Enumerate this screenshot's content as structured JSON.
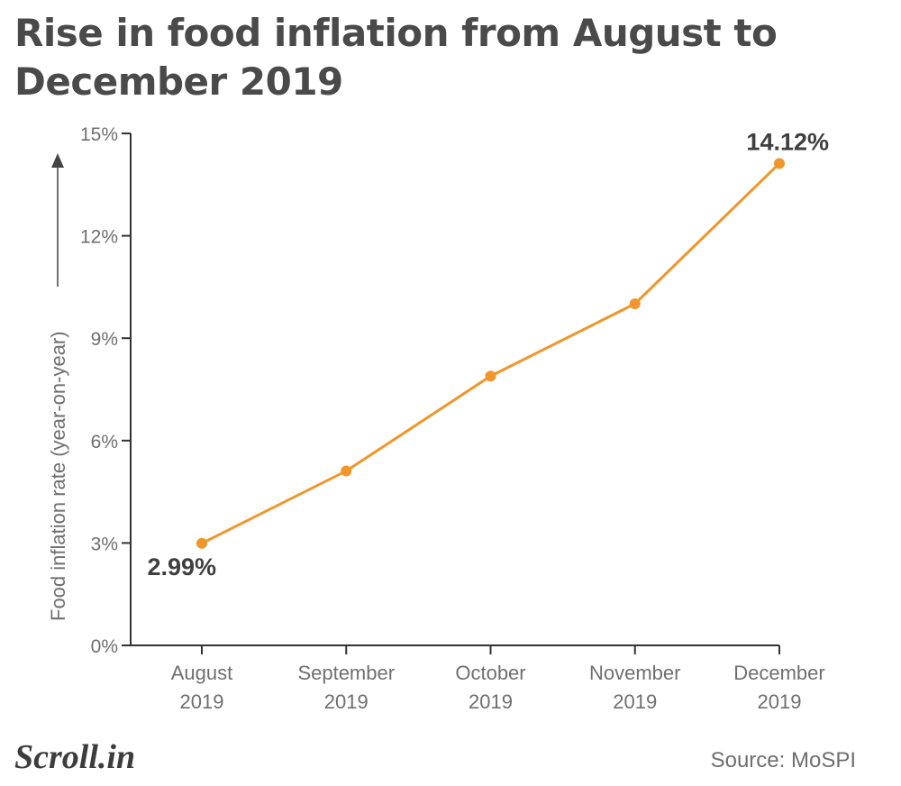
{
  "title": "Rise in food inflation from August to December 2019",
  "source": "Source: MoSPI",
  "logo": "Scroll.in",
  "colors": {
    "line": "#f0962a",
    "text": "#4a4a4a",
    "axis": "#333333"
  },
  "chart_data": {
    "type": "line",
    "title": "Rise in food inflation from August to December 2019",
    "ylabel": "Food inflation rate (year-on-year)",
    "categories": [
      [
        "August",
        "2019"
      ],
      [
        "September",
        "2019"
      ],
      [
        "October",
        "2019"
      ],
      [
        "November",
        "2019"
      ],
      [
        "December",
        "2019"
      ]
    ],
    "values": [
      2.99,
      5.11,
      7.89,
      10.01,
      14.12
    ],
    "ylim": [
      0,
      15
    ],
    "yticks": [
      0,
      3,
      6,
      9,
      12,
      15
    ],
    "ytick_labels": [
      "0%",
      "3%",
      "6%",
      "9%",
      "12%",
      "15%"
    ],
    "data_labels": [
      {
        "index": 0,
        "text": "2.99%"
      },
      {
        "index": 4,
        "text": "14.12%"
      }
    ],
    "grid": false
  }
}
